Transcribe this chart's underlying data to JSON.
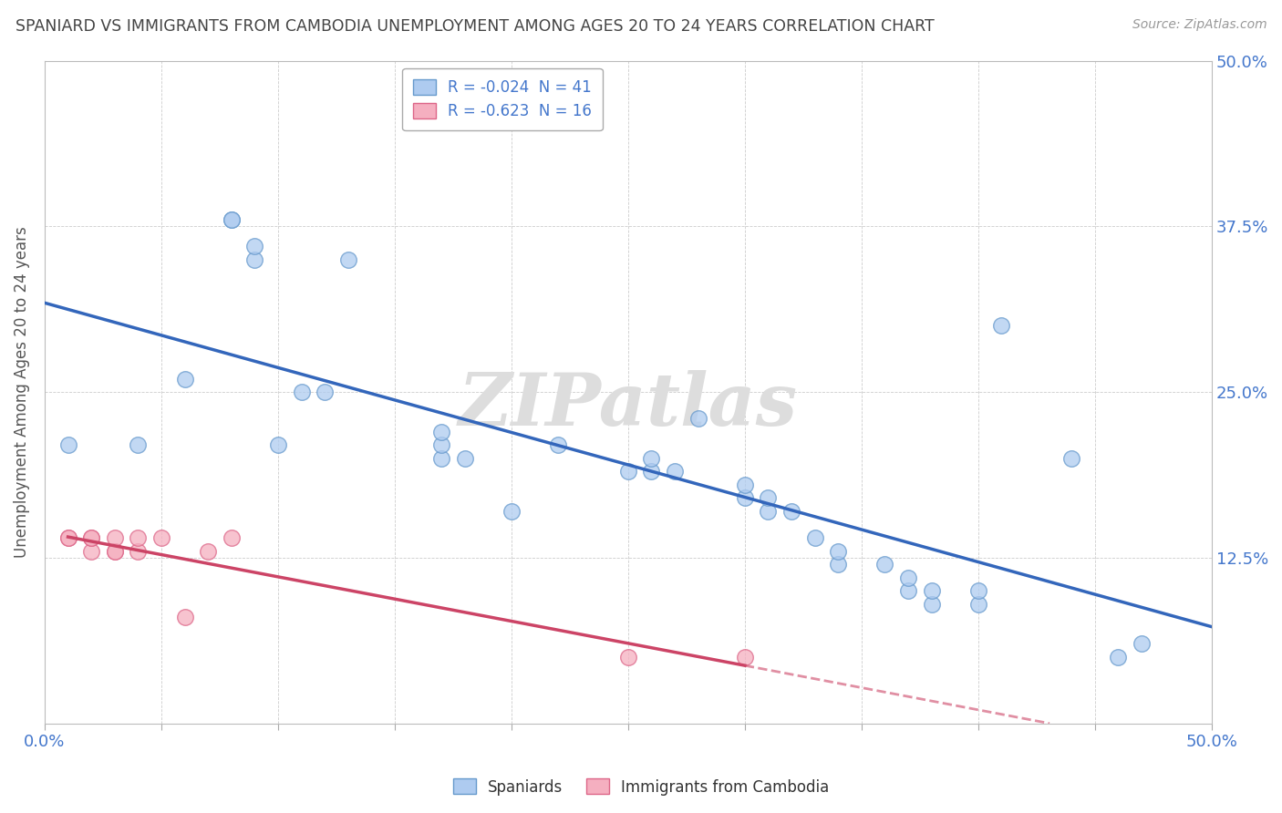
{
  "title": "SPANIARD VS IMMIGRANTS FROM CAMBODIA UNEMPLOYMENT AMONG AGES 20 TO 24 YEARS CORRELATION CHART",
  "source": "Source: ZipAtlas.com",
  "ylabel": "Unemployment Among Ages 20 to 24 years",
  "xlim": [
    0.0,
    0.5
  ],
  "ylim": [
    0.0,
    0.5
  ],
  "spaniards_x": [
    0.01,
    0.04,
    0.06,
    0.08,
    0.08,
    0.09,
    0.09,
    0.1,
    0.11,
    0.12,
    0.13,
    0.17,
    0.17,
    0.17,
    0.18,
    0.2,
    0.22,
    0.25,
    0.26,
    0.26,
    0.27,
    0.28,
    0.3,
    0.3,
    0.31,
    0.31,
    0.32,
    0.33,
    0.34,
    0.34,
    0.36,
    0.37,
    0.37,
    0.38,
    0.38,
    0.4,
    0.4,
    0.41,
    0.44,
    0.46,
    0.47
  ],
  "spaniards_y": [
    0.21,
    0.21,
    0.26,
    0.38,
    0.38,
    0.35,
    0.36,
    0.21,
    0.25,
    0.25,
    0.35,
    0.2,
    0.21,
    0.22,
    0.2,
    0.16,
    0.21,
    0.19,
    0.19,
    0.2,
    0.19,
    0.23,
    0.17,
    0.18,
    0.16,
    0.17,
    0.16,
    0.14,
    0.12,
    0.13,
    0.12,
    0.1,
    0.11,
    0.09,
    0.1,
    0.09,
    0.1,
    0.3,
    0.2,
    0.05,
    0.06
  ],
  "cambodia_x": [
    0.01,
    0.01,
    0.02,
    0.02,
    0.02,
    0.03,
    0.03,
    0.03,
    0.04,
    0.04,
    0.05,
    0.06,
    0.07,
    0.08,
    0.25,
    0.3
  ],
  "cambodia_y": [
    0.14,
    0.14,
    0.13,
    0.14,
    0.14,
    0.13,
    0.13,
    0.14,
    0.13,
    0.14,
    0.14,
    0.08,
    0.13,
    0.14,
    0.05,
    0.05
  ],
  "spaniards_R": -0.024,
  "spaniards_N": 41,
  "cambodia_R": -0.623,
  "cambodia_N": 16,
  "color_spaniards": "#aecbf0",
  "color_cambodia": "#f5afc0",
  "color_edge_spaniards": "#6699cc",
  "color_edge_cambodia": "#dd6688",
  "color_line_spaniards": "#3366bb",
  "color_line_cambodia": "#cc4466",
  "legend_label_spaniards": "Spaniards",
  "legend_label_cambodia": "Immigrants from Cambodia",
  "background_color": "#ffffff",
  "grid_color": "#cccccc",
  "title_color": "#444444",
  "axis_tick_color": "#4477cc",
  "watermark_text": "ZIPatlas",
  "watermark_color": "#dddddd"
}
